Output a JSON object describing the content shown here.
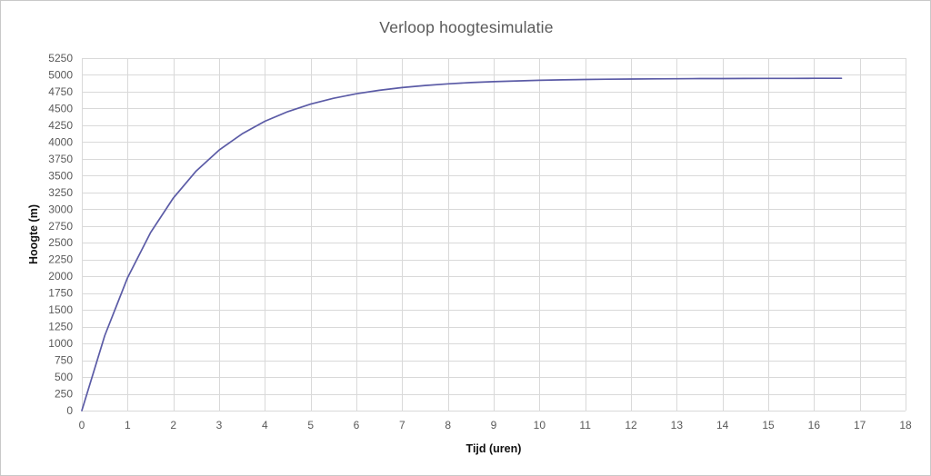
{
  "frame": {
    "background": "#ffffff",
    "border_color": "#c8c8c8"
  },
  "chart_data": {
    "type": "line",
    "title": "Verloop hoogtesimulatie",
    "xlabel": "Tijd (uren)",
    "ylabel": "Hoogte (m)",
    "xlim": [
      0,
      18
    ],
    "ylim": [
      0,
      5250
    ],
    "x_ticks": [
      0,
      1,
      2,
      3,
      4,
      5,
      6,
      7,
      8,
      9,
      10,
      11,
      12,
      13,
      14,
      15,
      16,
      17,
      18
    ],
    "y_ticks": [
      0,
      250,
      500,
      750,
      1000,
      1250,
      1500,
      1750,
      2000,
      2250,
      2500,
      2750,
      3000,
      3250,
      3500,
      3750,
      4000,
      4250,
      4500,
      4750,
      5000,
      5250
    ],
    "grid": true,
    "legend": "none",
    "colors": {
      "line": "#5B5BA6",
      "grid": "#d9d9d9",
      "tick_label": "#595959",
      "title": "#595959",
      "axis_title": "#111111"
    },
    "series": [
      {
        "x": [
          0,
          0.5,
          1,
          1.5,
          2,
          2.5,
          3,
          3.5,
          4,
          4.5,
          5,
          5.5,
          6,
          6.5,
          7,
          7.5,
          8,
          8.5,
          9,
          9.5,
          10,
          10.5,
          11,
          11.5,
          12,
          12.5,
          13,
          13.5,
          14,
          14.5,
          15,
          15.5,
          16,
          16.6
        ],
        "y": [
          0,
          1116,
          1980,
          2650,
          3168,
          3569,
          3881,
          4122,
          4309,
          4453,
          4565,
          4652,
          4719,
          4771,
          4811,
          4843,
          4867,
          4886,
          4900,
          4911,
          4920,
          4927,
          4932,
          4936,
          4939,
          4941,
          4943,
          4945,
          4946,
          4947,
          4948,
          4948,
          4949,
          4949
        ]
      }
    ]
  }
}
